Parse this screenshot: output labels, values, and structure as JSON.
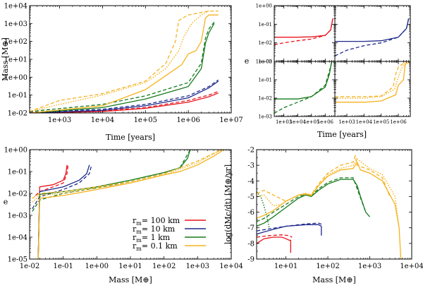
{
  "series_colors": {
    "r100": "#e8141c",
    "r10": "#1e2a8c",
    "r1": "#167a1c",
    "r01": "#f5b21e"
  },
  "legend": {
    "entries": [
      {
        "key": "r100",
        "label": "r",
        "sub": "m",
        "rest": "= 100 km"
      },
      {
        "key": "r10",
        "label": "r",
        "sub": "m",
        "rest": "= 10 km"
      },
      {
        "key": "r1",
        "label": "r",
        "sub": "m",
        "rest": "= 1 km"
      },
      {
        "key": "r01",
        "label": "r",
        "sub": "m",
        "rest": "= 0.1 km"
      }
    ]
  },
  "chart_data": [
    {
      "id": "mass_vs_time",
      "type": "line",
      "xscale": "log",
      "yscale": "log",
      "xlim": [
        200,
        10000000
      ],
      "ylim": [
        0.01,
        10000
      ],
      "xlabel": "Time [years]",
      "ylabel": "Mass [M⊕]",
      "xticks": [
        "1e+03",
        "1e+04",
        "1e+05",
        "1e+06",
        "1e+07"
      ],
      "yticks": [
        "1e-02",
        "1e-01",
        "1e+00",
        "1e+01",
        "1e+02",
        "1e+03",
        "1e+04"
      ],
      "series": [
        {
          "key": "r100",
          "style": "solid",
          "x": [
            200,
            10000,
            100000,
            1000000,
            3000000,
            5000000
          ],
          "y": [
            0.01,
            0.012,
            0.018,
            0.04,
            0.08,
            0.13
          ]
        },
        {
          "key": "r100",
          "style": "dashed",
          "x": [
            200,
            10000,
            100000,
            1000000,
            3000000,
            5000000
          ],
          "y": [
            0.01,
            0.013,
            0.02,
            0.05,
            0.1,
            0.16
          ]
        },
        {
          "key": "r10",
          "style": "solid",
          "x": [
            200,
            10000,
            100000,
            1000000,
            3000000,
            5000000
          ],
          "y": [
            0.01,
            0.014,
            0.025,
            0.07,
            0.25,
            0.6
          ]
        },
        {
          "key": "r10",
          "style": "dashed",
          "x": [
            200,
            10000,
            100000,
            1000000,
            3000000,
            5000000
          ],
          "y": [
            0.011,
            0.016,
            0.03,
            0.09,
            0.3,
            0.7
          ]
        },
        {
          "key": "r1",
          "style": "solid",
          "x": [
            200,
            10000,
            100000,
            1000000,
            2000000,
            2500000,
            3000000,
            4000000
          ],
          "y": [
            0.01,
            0.02,
            0.06,
            0.3,
            3,
            80,
            300,
            1000
          ]
        },
        {
          "key": "r1",
          "style": "dashed",
          "x": [
            200,
            10000,
            100000,
            1000000,
            2000000,
            2500000,
            3000000,
            4000000
          ],
          "y": [
            0.012,
            0.03,
            0.09,
            0.5,
            6,
            150,
            500,
            1200
          ]
        },
        {
          "key": "r01",
          "style": "solid",
          "x": [
            200,
            10000,
            100000,
            700000,
            1000000,
            1500000,
            2000000,
            2500000,
            3000000,
            5000000
          ],
          "y": [
            0.01,
            0.025,
            0.2,
            5,
            20,
            30,
            100,
            2000,
            3000,
            3000
          ]
        },
        {
          "key": "r01",
          "style": "dashed",
          "x": [
            200,
            1000,
            10000,
            100000,
            300000,
            500000,
            600000,
            1000000,
            3000000,
            5000000
          ],
          "y": [
            0.012,
            0.05,
            0.12,
            0.6,
            6,
            100,
            1500,
            3000,
            5000,
            5000
          ]
        },
        {
          "key": "r01",
          "style": "dotted",
          "x": [
            200,
            1000,
            10000,
            100000,
            300000,
            600000,
            800000,
            1200000,
            2000000,
            3000000
          ],
          "y": [
            0.012,
            0.03,
            0.1,
            0.5,
            3,
            30,
            200,
            1000,
            3000,
            5000
          ]
        }
      ]
    },
    {
      "id": "ecc_vs_time_grid",
      "type": "line",
      "xscale": "log",
      "yscale": "log",
      "xlim": [
        200,
        5000000
      ],
      "ylim": [
        0.001,
        1
      ],
      "xlabel": "Time [years]",
      "ylabel": "e",
      "xticks": [
        "1e+03",
        "1e+04",
        "1e+05",
        "1e+06"
      ],
      "yticks": [
        "1e-03",
        "1e-02",
        "1e-01",
        "1e+00"
      ],
      "panels": [
        {
          "key": "r100",
          "series": [
            {
              "style": "solid",
              "x": [
                200,
                10000,
                100000,
                1000000,
                2500000,
                3500000
              ],
              "y": [
                0.02,
                0.02,
                0.021,
                0.025,
                0.05,
                0.2
              ]
            },
            {
              "style": "dashed",
              "x": [
                200,
                1000,
                10000,
                100000,
                1000000,
                2500000,
                3500000
              ],
              "y": [
                0.008,
                0.01,
                0.013,
                0.016,
                0.025,
                0.05,
                0.2
              ]
            }
          ]
        },
        {
          "key": "r10",
          "series": [
            {
              "style": "solid",
              "x": [
                200,
                10000,
                100000,
                1000000,
                3000000,
                4000000
              ],
              "y": [
                0.012,
                0.012,
                0.013,
                0.02,
                0.06,
                0.2
              ]
            },
            {
              "style": "dashed",
              "x": [
                200,
                1000,
                10000,
                100000,
                1000000,
                3000000,
                4000000
              ],
              "y": [
                0.002,
                0.004,
                0.007,
                0.01,
                0.02,
                0.06,
                0.2
              ]
            }
          ]
        },
        {
          "key": "r1",
          "series": [
            {
              "style": "solid",
              "x": [
                200,
                10000,
                100000,
                1000000,
                2000000,
                2500000,
                3000000
              ],
              "y": [
                0.009,
                0.009,
                0.012,
                0.04,
                0.2,
                0.5,
                1.0
              ]
            },
            {
              "style": "dashed",
              "x": [
                200,
                1000,
                10000,
                100000,
                1000000,
                2000000,
                3000000
              ],
              "y": [
                0.0015,
                0.003,
                0.006,
                0.012,
                0.05,
                0.3,
                1.0
              ]
            }
          ]
        },
        {
          "key": "r01",
          "series": [
            {
              "style": "solid",
              "x": [
                200,
                10000,
                100000,
                700000,
                1000000,
                2000000,
                2500000,
                5000000
              ],
              "y": [
                0.006,
                0.006,
                0.007,
                0.015,
                0.05,
                0.1,
                0.7,
                1.0
              ]
            },
            {
              "style": "dashed",
              "x": [
                200,
                10000,
                100000,
                500000,
                700000,
                1000000,
                3000000
              ],
              "y": [
                0.012,
                0.012,
                0.013,
                0.04,
                0.2,
                0.5,
                1.0
              ]
            },
            {
              "style": "dotted",
              "x": [
                200,
                10000,
                100000,
                600000,
                900000,
                1500000,
                3000000
              ],
              "y": [
                0.01,
                0.01,
                0.012,
                0.03,
                0.1,
                0.4,
                1.0
              ]
            }
          ]
        }
      ]
    },
    {
      "id": "ecc_vs_mass",
      "type": "line",
      "xscale": "log",
      "yscale": "log",
      "xlim": [
        0.01,
        10000
      ],
      "ylim": [
        1e-05,
        1
      ],
      "xlabel": "Mass [M⊕]",
      "ylabel": "e",
      "xticks": [
        "1e-02",
        "1e-01",
        "1e+00",
        "1e+01",
        "1e+02",
        "1e+03",
        "1e+04"
      ],
      "yticks": [
        "1e-05",
        "1e-04",
        "1e-03",
        "1e-02",
        "1e-01",
        "1e+00"
      ],
      "series": [
        {
          "key": "r100",
          "style": "solid",
          "x": [
            0.018,
            0.02,
            0.05,
            0.1,
            0.12,
            0.13
          ],
          "y": [
            1e-05,
            0.02,
            0.025,
            0.04,
            0.08,
            0.2
          ]
        },
        {
          "key": "r100",
          "style": "dashed",
          "x": [
            0.015,
            0.02,
            0.05,
            0.1,
            0.13,
            0.14
          ],
          "y": [
            0.008,
            0.012,
            0.02,
            0.03,
            0.08,
            0.2
          ]
        },
        {
          "key": "r10",
          "style": "solid",
          "x": [
            0.018,
            0.02,
            0.1,
            0.3,
            0.5,
            0.6
          ],
          "y": [
            1e-05,
            0.012,
            0.02,
            0.04,
            0.08,
            0.2
          ]
        },
        {
          "key": "r10",
          "style": "dashed",
          "x": [
            0.012,
            0.02,
            0.1,
            0.3,
            0.6,
            0.7
          ],
          "y": [
            0.002,
            0.007,
            0.015,
            0.03,
            0.08,
            0.2
          ]
        },
        {
          "key": "r1",
          "style": "solid",
          "x": [
            0.018,
            0.02,
            0.1,
            1,
            10,
            100,
            300,
            500,
            600
          ],
          "y": [
            1e-05,
            0.009,
            0.012,
            0.02,
            0.04,
            0.09,
            0.15,
            0.4,
            1.0
          ]
        },
        {
          "key": "r1",
          "style": "dashed",
          "x": [
            0.012,
            0.02,
            0.1,
            1,
            10,
            100,
            300,
            600
          ],
          "y": [
            0.0015,
            0.005,
            0.01,
            0.018,
            0.035,
            0.08,
            0.15,
            1.0
          ]
        },
        {
          "key": "r01",
          "style": "solid",
          "x": [
            0.018,
            0.02,
            0.1,
            1,
            10,
            100,
            300,
            1000,
            3000,
            6000
          ],
          "y": [
            1e-05,
            0.006,
            0.008,
            0.015,
            0.03,
            0.07,
            0.1,
            0.2,
            0.5,
            1.0
          ]
        },
        {
          "key": "r01",
          "style": "dashed",
          "x": [
            0.012,
            0.02,
            0.1,
            1,
            10,
            100,
            1000,
            5000
          ],
          "y": [
            0.006,
            0.01,
            0.012,
            0.02,
            0.035,
            0.08,
            0.3,
            1.0
          ]
        },
        {
          "key": "r01",
          "style": "dotted",
          "x": [
            0.012,
            0.02,
            0.1,
            1,
            10,
            100,
            1000,
            5000
          ],
          "y": [
            0.004,
            0.008,
            0.01,
            0.018,
            0.03,
            0.07,
            0.25,
            1.0
          ]
        }
      ]
    },
    {
      "id": "accretion_rate_vs_mass",
      "type": "line",
      "xscale": "log",
      "yscale": "linear",
      "xlim": [
        2,
        10000
      ],
      "ylim": [
        -9,
        -2
      ],
      "xlabel": "Mass [M⊕]",
      "ylabel": "log(dMc/dt) [M⊕/yr]",
      "xticks": [
        "1e+01",
        "1e+02",
        "1e+03",
        "1e+04"
      ],
      "yticks": [
        "-9",
        "-8",
        "-7",
        "-6",
        "-5",
        "-4",
        "-3",
        "-2"
      ],
      "series": [
        {
          "key": "r100",
          "style": "solid",
          "x": [
            2,
            3,
            5,
            8,
            10,
            12,
            13,
            13
          ],
          "y": [
            -8.0,
            -7.7,
            -7.6,
            -7.6,
            -7.7,
            -7.8,
            -7.8,
            -8.6
          ]
        },
        {
          "key": "r100",
          "style": "dashed",
          "x": [
            2,
            4,
            8,
            12,
            14
          ],
          "y": [
            -7.6,
            -7.5,
            -7.45,
            -7.5,
            -7.6
          ]
        },
        {
          "key": "r10",
          "style": "solid",
          "x": [
            2,
            5,
            10,
            30,
            60,
            70,
            70
          ],
          "y": [
            -7.4,
            -7.1,
            -6.9,
            -6.8,
            -6.8,
            -6.9,
            -7.5
          ]
        },
        {
          "key": "r10",
          "style": "dashed",
          "x": [
            2,
            10,
            30,
            60,
            75
          ],
          "y": [
            -7.2,
            -6.9,
            -6.75,
            -6.7,
            -6.8
          ]
        },
        {
          "key": "r1",
          "style": "solid",
          "x": [
            2,
            3,
            5,
            10,
            20,
            30,
            40,
            60,
            100,
            200,
            400,
            500,
            600,
            800,
            1000
          ],
          "y": [
            -6.9,
            -6.7,
            -6.3,
            -5.7,
            -5.1,
            -4.9,
            -5.0,
            -4.6,
            -4.2,
            -3.9,
            -3.9,
            -4.3,
            -5.0,
            -6.0,
            -6.3
          ]
        },
        {
          "key": "r1",
          "style": "dashed",
          "x": [
            2,
            3,
            5,
            10,
            20,
            30,
            40,
            60,
            100,
            200,
            400,
            500,
            800
          ],
          "y": [
            -6.6,
            -6.4,
            -6.0,
            -5.5,
            -5.0,
            -4.85,
            -4.95,
            -4.5,
            -4.1,
            -3.8,
            -3.8,
            -4.5,
            -6.0
          ]
        },
        {
          "key": "r1",
          "style": "dotted",
          "x": [
            2,
            2.5,
            3,
            3.5,
            4
          ],
          "y": [
            -4.7,
            -5.0,
            -5.6,
            -6.3,
            -7.0
          ]
        },
        {
          "key": "r01",
          "style": "solid",
          "x": [
            2,
            3,
            5,
            10,
            20,
            30,
            40,
            60,
            100,
            200,
            400,
            500,
            600,
            1000,
            2000,
            4000,
            5000,
            5500
          ],
          "y": [
            -6.4,
            -6.2,
            -5.9,
            -5.3,
            -4.9,
            -4.85,
            -4.95,
            -4.3,
            -3.7,
            -3.3,
            -3.2,
            -2.8,
            -3.3,
            -3.5,
            -4.0,
            -5.5,
            -7.0,
            -9.0
          ]
        },
        {
          "key": "r01",
          "style": "dashed",
          "x": [
            2,
            3,
            5,
            10,
            20,
            30,
            40,
            60,
            100,
            200,
            400,
            450,
            500,
            1000,
            2000,
            3000
          ],
          "y": [
            -4.8,
            -4.6,
            -4.9,
            -5.3,
            -4.9,
            -4.8,
            -4.9,
            -4.2,
            -3.5,
            -3.0,
            -2.8,
            -2.4,
            -3.0,
            -3.3,
            -3.8,
            -5.0
          ]
        },
        {
          "key": "r01",
          "style": "dotted",
          "x": [
            2,
            3,
            5,
            8,
            10,
            20,
            30,
            40,
            60,
            100,
            200,
            400,
            500,
            1000,
            2000,
            4000,
            5000
          ],
          "y": [
            -5.0,
            -4.9,
            -5.6,
            -5.5,
            -5.3,
            -4.9,
            -4.8,
            -4.9,
            -4.3,
            -3.6,
            -3.2,
            -3.0,
            -2.6,
            -3.2,
            -3.6,
            -5.0,
            -7.0
          ]
        }
      ]
    }
  ]
}
